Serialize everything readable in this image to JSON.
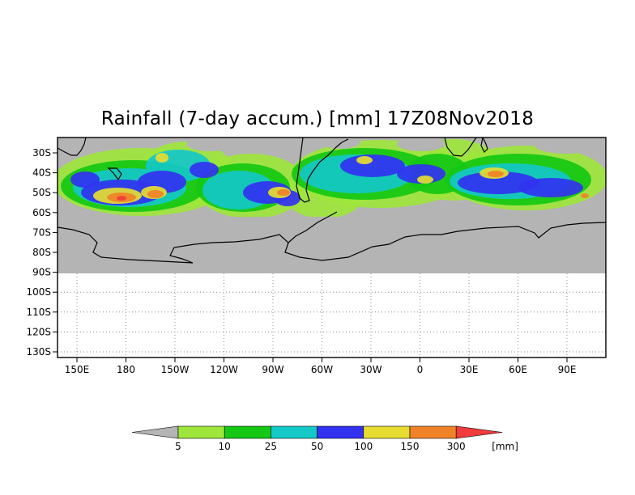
{
  "title": "Rainfall (7-day accum.) [mm] 17Z08Nov2018",
  "latitude_labels": [
    "30S",
    "40S",
    "50S",
    "60S",
    "70S",
    "80S",
    "90S",
    "100S",
    "110S",
    "120S",
    "130S"
  ],
  "longitude_labels": [
    "150E",
    "180",
    "150W",
    "120W",
    "90W",
    "60W",
    "30W",
    "0",
    "30E",
    "60E",
    "90E"
  ],
  "colorbar": {
    "thresholds": [
      "5",
      "10",
      "25",
      "50",
      "100",
      "150",
      "300"
    ],
    "unit": "[mm]",
    "colors": [
      "#b4b4b4",
      "#9ee63c",
      "#14c814",
      "#14c8c8",
      "#3232f0",
      "#e6dc32",
      "#f08228",
      "#f03c3c"
    ]
  },
  "map_colors": {
    "no_rain": "#b4b4b4",
    "land_outline": "#000000"
  }
}
